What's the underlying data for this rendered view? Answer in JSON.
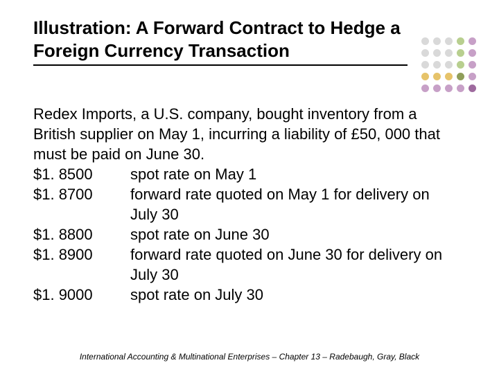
{
  "title": "Illustration: A Forward Contract to Hedge a Foreign Currency Transaction",
  "intro": "Redex Imports, a U.S. company, bought inventory from a British supplier on May 1, incurring a liability of £50, 000 that must be paid on June 30.",
  "rates": [
    {
      "value": "$1. 8500",
      "desc": "spot rate on May 1"
    },
    {
      "value": "$1. 8700",
      "desc": "forward rate quoted on May 1 for delivery on July 30"
    },
    {
      "value": "$1. 8800",
      "desc": "spot rate on June 30"
    },
    {
      "value": "$1. 8900",
      "desc": "forward rate quoted on June 30 for delivery on July 30"
    },
    {
      "value": "$1. 9000",
      "desc": "spot rate on July 30"
    }
  ],
  "footer": "International Accounting & Multinational Enterprises – Chapter 13 – Radebaugh, Gray, Black",
  "dot_colors": {
    "row0": [
      "#d9d9d9",
      "#d9d9d9",
      "#d9d9d9",
      "#b8cf8f",
      "#c7a0c7"
    ],
    "row1": [
      "#d9d9d9",
      "#d9d9d9",
      "#d9d9d9",
      "#b8cf8f",
      "#c7a0c7"
    ],
    "row2": [
      "#d9d9d9",
      "#d9d9d9",
      "#d9d9d9",
      "#b8cf8f",
      "#c7a0c7"
    ],
    "row3": [
      "#e6c36a",
      "#e6c36a",
      "#e6c36a",
      "#8f9e5a",
      "#c7a0c7"
    ],
    "row4": [
      "#c7a0c7",
      "#c7a0c7",
      "#c7a0c7",
      "#c7a0c7",
      "#9e6a9e"
    ]
  },
  "style": {
    "background": "#ffffff",
    "text_color": "#000000",
    "title_fontsize": 26,
    "body_fontsize": 22,
    "footer_fontsize": 12
  }
}
